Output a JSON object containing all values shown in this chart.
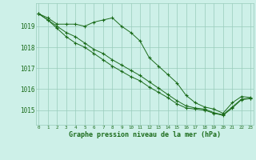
{
  "title": "Graphe pression niveau de la mer (hPa)",
  "background_color": "#cdf0e8",
  "grid_color": "#99ccbb",
  "line_color": "#1a6b1a",
  "marker": "+",
  "x_labels": [
    "0",
    "1",
    "2",
    "3",
    "4",
    "5",
    "6",
    "7",
    "8",
    "9",
    "10",
    "11",
    "12",
    "13",
    "14",
    "15",
    "16",
    "17",
    "18",
    "19",
    "20",
    "21",
    "22",
    "23"
  ],
  "y_ticks": [
    1015,
    1016,
    1017,
    1018,
    1019
  ],
  "ylim": [
    1014.3,
    1020.1
  ],
  "xlim": [
    -0.3,
    23.3
  ],
  "figsize": [
    3.2,
    2.0
  ],
  "dpi": 100,
  "series": [
    [
      1019.6,
      1019.4,
      1019.1,
      1019.1,
      1019.1,
      1019.0,
      1019.2,
      1019.3,
      1019.4,
      1019.0,
      1018.7,
      1018.3,
      1017.5,
      1017.1,
      1016.7,
      1016.3,
      1015.7,
      1015.35,
      1015.15,
      1015.05,
      1014.85,
      1015.35,
      1015.65,
      1015.6
    ],
    [
      1019.6,
      1019.3,
      1018.9,
      1018.5,
      1018.2,
      1018.0,
      1017.7,
      1017.4,
      1017.1,
      1016.85,
      1016.6,
      1016.4,
      1016.1,
      1015.85,
      1015.6,
      1015.3,
      1015.1,
      1015.05,
      1015.0,
      1014.85,
      1014.75,
      1015.1,
      1015.5,
      1015.55
    ],
    [
      1019.6,
      1019.3,
      1019.0,
      1018.7,
      1018.5,
      1018.2,
      1017.9,
      1017.7,
      1017.4,
      1017.15,
      1016.9,
      1016.65,
      1016.35,
      1016.05,
      1015.75,
      1015.45,
      1015.2,
      1015.1,
      1015.05,
      1014.88,
      1014.78,
      1015.15,
      1015.52,
      1015.57
    ]
  ]
}
